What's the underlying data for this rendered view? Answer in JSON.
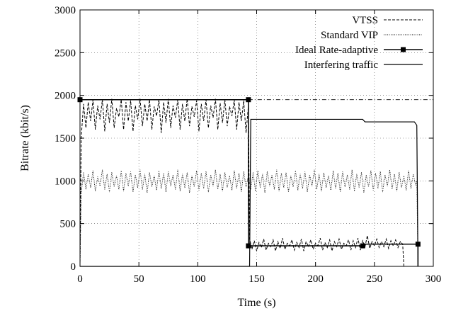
{
  "chart_data": {
    "type": "line",
    "title": "",
    "xlabel": "Time (s)",
    "ylabel": "Bitrate (kbit/s)",
    "xlim": [
      0,
      300
    ],
    "ylim": [
      0,
      3000
    ],
    "x_ticks": [
      0,
      50,
      100,
      150,
      200,
      250,
      300
    ],
    "y_ticks": [
      0,
      500,
      1000,
      1500,
      2000,
      2500,
      3000
    ],
    "grid": true,
    "legend_position": "top-right",
    "series": [
      {
        "name": "VTSS",
        "style": "dashed",
        "color": "#000000",
        "points": [
          [
            0,
            0
          ],
          [
            1,
            1500
          ],
          [
            3,
            1900
          ],
          [
            5,
            1620
          ],
          [
            7,
            1920
          ],
          [
            9,
            1700
          ],
          [
            11,
            1950
          ],
          [
            13,
            1600
          ],
          [
            15,
            1880
          ],
          [
            17,
            1720
          ],
          [
            19,
            1950
          ],
          [
            21,
            1580
          ],
          [
            23,
            1900
          ],
          [
            25,
            1680
          ],
          [
            27,
            1960
          ],
          [
            29,
            1620
          ],
          [
            31,
            1850
          ],
          [
            33,
            1750
          ],
          [
            35,
            1950
          ],
          [
            37,
            1600
          ],
          [
            39,
            1920
          ],
          [
            41,
            1700
          ],
          [
            43,
            1940
          ],
          [
            45,
            1580
          ],
          [
            47,
            1880
          ],
          [
            49,
            1720
          ],
          [
            51,
            1960
          ],
          [
            53,
            1640
          ],
          [
            55,
            1900
          ],
          [
            57,
            1700
          ],
          [
            59,
            1950
          ],
          [
            61,
            1600
          ],
          [
            63,
            1870
          ],
          [
            65,
            1760
          ],
          [
            67,
            1950
          ],
          [
            69,
            1560
          ],
          [
            71,
            1920
          ],
          [
            73,
            1680
          ],
          [
            75,
            1960
          ],
          [
            77,
            1620
          ],
          [
            79,
            1880
          ],
          [
            81,
            1740
          ],
          [
            83,
            1950
          ],
          [
            85,
            1600
          ],
          [
            87,
            1900
          ],
          [
            89,
            1700
          ],
          [
            91,
            1960
          ],
          [
            93,
            1640
          ],
          [
            95,
            1870
          ],
          [
            97,
            1750
          ],
          [
            99,
            1940
          ],
          [
            101,
            1580
          ],
          [
            103,
            1900
          ],
          [
            105,
            1700
          ],
          [
            107,
            1950
          ],
          [
            109,
            1620
          ],
          [
            111,
            1880
          ],
          [
            113,
            1740
          ],
          [
            115,
            1960
          ],
          [
            117,
            1600
          ],
          [
            119,
            1910
          ],
          [
            121,
            1680
          ],
          [
            123,
            1950
          ],
          [
            125,
            1640
          ],
          [
            127,
            1870
          ],
          [
            129,
            1760
          ],
          [
            131,
            1950
          ],
          [
            133,
            1600
          ],
          [
            135,
            1920
          ],
          [
            137,
            1700
          ],
          [
            139,
            1940
          ],
          [
            141,
            1560
          ],
          [
            143,
            1880
          ],
          [
            144,
            320
          ],
          [
            146,
            200
          ],
          [
            148,
            300
          ],
          [
            150,
            180
          ],
          [
            152,
            280
          ],
          [
            154,
            220
          ],
          [
            156,
            320
          ],
          [
            158,
            190
          ],
          [
            160,
            270
          ],
          [
            162,
            230
          ],
          [
            164,
            310
          ],
          [
            166,
            180
          ],
          [
            168,
            290
          ],
          [
            170,
            210
          ],
          [
            172,
            330
          ],
          [
            174,
            200
          ],
          [
            176,
            270
          ],
          [
            178,
            240
          ],
          [
            180,
            310
          ],
          [
            182,
            190
          ],
          [
            184,
            280
          ],
          [
            186,
            220
          ],
          [
            188,
            320
          ],
          [
            190,
            180
          ],
          [
            192,
            290
          ],
          [
            194,
            230
          ],
          [
            196,
            310
          ],
          [
            198,
            200
          ],
          [
            200,
            270
          ],
          [
            202,
            240
          ],
          [
            204,
            330
          ],
          [
            206,
            190
          ],
          [
            208,
            280
          ],
          [
            210,
            220
          ],
          [
            212,
            310
          ],
          [
            214,
            180
          ],
          [
            216,
            290
          ],
          [
            218,
            230
          ],
          [
            220,
            320
          ],
          [
            222,
            200
          ],
          [
            224,
            270
          ],
          [
            226,
            240
          ],
          [
            228,
            310
          ],
          [
            230,
            190
          ],
          [
            232,
            300
          ],
          [
            234,
            220
          ],
          [
            236,
            330
          ],
          [
            238,
            190
          ],
          [
            240,
            300
          ],
          [
            242,
            230
          ],
          [
            244,
            360
          ],
          [
            246,
            210
          ],
          [
            248,
            290
          ],
          [
            250,
            240
          ],
          [
            252,
            320
          ],
          [
            254,
            220
          ],
          [
            256,
            290
          ],
          [
            258,
            230
          ],
          [
            260,
            320
          ],
          [
            262,
            210
          ],
          [
            264,
            300
          ],
          [
            266,
            240
          ],
          [
            268,
            310
          ],
          [
            270,
            220
          ],
          [
            272,
            290
          ],
          [
            274,
            260
          ],
          [
            275,
            0
          ],
          [
            287,
            0
          ]
        ]
      },
      {
        "name": "Standard VIP",
        "style": "dotted",
        "color": "#000000",
        "points": [
          [
            0,
            0
          ],
          [
            1,
            850
          ],
          [
            3,
            1100
          ],
          [
            5,
            900
          ],
          [
            7,
            1080
          ],
          [
            9,
            920
          ],
          [
            11,
            1120
          ],
          [
            13,
            880
          ],
          [
            15,
            1050
          ],
          [
            17,
            940
          ],
          [
            19,
            1130
          ],
          [
            21,
            900
          ],
          [
            23,
            1080
          ],
          [
            25,
            870
          ],
          [
            27,
            1100
          ],
          [
            29,
            930
          ],
          [
            31,
            1060
          ],
          [
            33,
            900
          ],
          [
            35,
            1120
          ],
          [
            37,
            880
          ],
          [
            39,
            1090
          ],
          [
            41,
            940
          ],
          [
            43,
            1110
          ],
          [
            45,
            870
          ],
          [
            47,
            1070
          ],
          [
            49,
            920
          ],
          [
            51,
            1130
          ],
          [
            53,
            900
          ],
          [
            55,
            1080
          ],
          [
            57,
            860
          ],
          [
            59,
            1100
          ],
          [
            61,
            930
          ],
          [
            63,
            1060
          ],
          [
            65,
            890
          ],
          [
            67,
            1120
          ],
          [
            69,
            910
          ],
          [
            71,
            1090
          ],
          [
            73,
            870
          ],
          [
            75,
            1110
          ],
          [
            77,
            940
          ],
          [
            79,
            1070
          ],
          [
            81,
            900
          ],
          [
            83,
            1130
          ],
          [
            85,
            880
          ],
          [
            87,
            1080
          ],
          [
            89,
            920
          ],
          [
            91,
            1100
          ],
          [
            93,
            860
          ],
          [
            95,
            1060
          ],
          [
            97,
            930
          ],
          [
            99,
            1120
          ],
          [
            101,
            890
          ],
          [
            103,
            1090
          ],
          [
            105,
            910
          ],
          [
            107,
            1110
          ],
          [
            109,
            870
          ],
          [
            111,
            1070
          ],
          [
            113,
            940
          ],
          [
            115,
            1130
          ],
          [
            117,
            900
          ],
          [
            119,
            1080
          ],
          [
            121,
            880
          ],
          [
            123,
            1100
          ],
          [
            125,
            920
          ],
          [
            127,
            1060
          ],
          [
            129,
            890
          ],
          [
            131,
            1120
          ],
          [
            133,
            910
          ],
          [
            135,
            1090
          ],
          [
            137,
            870
          ],
          [
            139,
            1110
          ],
          [
            141,
            930
          ],
          [
            143,
            1070
          ],
          [
            145,
            900
          ],
          [
            147,
            1100
          ],
          [
            149,
            880
          ],
          [
            151,
            1120
          ],
          [
            153,
            920
          ],
          [
            155,
            1080
          ],
          [
            157,
            860
          ],
          [
            159,
            1110
          ],
          [
            161,
            940
          ],
          [
            163,
            1070
          ],
          [
            165,
            900
          ],
          [
            167,
            1130
          ],
          [
            169,
            880
          ],
          [
            171,
            1090
          ],
          [
            173,
            920
          ],
          [
            175,
            1100
          ],
          [
            177,
            870
          ],
          [
            179,
            1060
          ],
          [
            181,
            930
          ],
          [
            183,
            1120
          ],
          [
            185,
            890
          ],
          [
            187,
            1080
          ],
          [
            189,
            910
          ],
          [
            191,
            1110
          ],
          [
            193,
            870
          ],
          [
            195,
            1070
          ],
          [
            197,
            940
          ],
          [
            199,
            1130
          ],
          [
            201,
            900
          ],
          [
            203,
            1080
          ],
          [
            205,
            880
          ],
          [
            207,
            1100
          ],
          [
            209,
            920
          ],
          [
            211,
            1060
          ],
          [
            213,
            890
          ],
          [
            215,
            1120
          ],
          [
            217,
            910
          ],
          [
            219,
            1090
          ],
          [
            221,
            870
          ],
          [
            223,
            1110
          ],
          [
            225,
            930
          ],
          [
            227,
            1070
          ],
          [
            229,
            900
          ],
          [
            231,
            1130
          ],
          [
            233,
            880
          ],
          [
            235,
            1080
          ],
          [
            237,
            920
          ],
          [
            239,
            1100
          ],
          [
            241,
            860
          ],
          [
            243,
            1070
          ],
          [
            245,
            930
          ],
          [
            247,
            1120
          ],
          [
            249,
            890
          ],
          [
            251,
            1090
          ],
          [
            253,
            910
          ],
          [
            255,
            1110
          ],
          [
            257,
            870
          ],
          [
            259,
            1070
          ],
          [
            261,
            940
          ],
          [
            263,
            1130
          ],
          [
            265,
            900
          ],
          [
            267,
            1080
          ],
          [
            269,
            880
          ],
          [
            271,
            1100
          ],
          [
            273,
            920
          ],
          [
            275,
            1060
          ],
          [
            277,
            890
          ],
          [
            279,
            1120
          ],
          [
            281,
            910
          ],
          [
            283,
            1080
          ],
          [
            285,
            950
          ],
          [
            286,
            1000
          ],
          [
            287,
            0
          ]
        ]
      },
      {
        "name": "Ideal Rate-adaptive",
        "style": "solid-with-markers",
        "color": "#000000",
        "points": [
          [
            0,
            1950
          ],
          [
            143,
            1950
          ],
          [
            143,
            240
          ],
          [
            240,
            240
          ],
          [
            240,
            260
          ],
          [
            287,
            260
          ],
          [
            287,
            0
          ]
        ],
        "markers": [
          [
            0,
            1950
          ],
          [
            143,
            1950
          ],
          [
            143,
            240
          ],
          [
            240,
            240
          ],
          [
            287,
            260
          ]
        ]
      },
      {
        "name": "Interfering traffic",
        "style": "solid",
        "color": "#000000",
        "points": [
          [
            0,
            0
          ],
          [
            144,
            0
          ],
          [
            145,
            1720
          ],
          [
            240,
            1720
          ],
          [
            242,
            1690
          ],
          [
            284,
            1690
          ],
          [
            286,
            1650
          ],
          [
            287,
            0
          ]
        ]
      }
    ],
    "reference_line": {
      "y": 1950,
      "x_from": 143,
      "x_to": 300,
      "style": "dash-dot"
    }
  }
}
